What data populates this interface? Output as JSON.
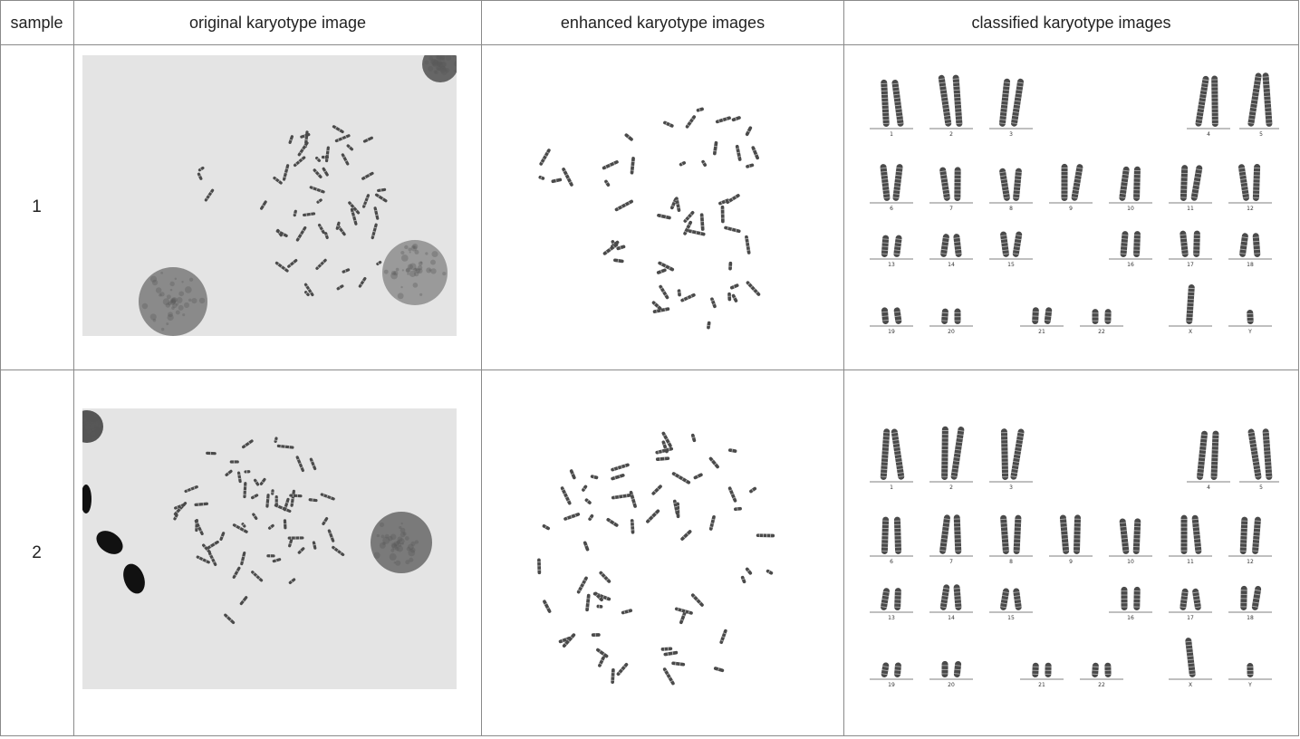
{
  "table": {
    "headers": {
      "sample": "sample",
      "original": "original karyotype image",
      "enhanced": "enhanced karyotype images",
      "classified": "classified karyotype images"
    },
    "rows": [
      {
        "sample": "1"
      },
      {
        "sample": "2"
      }
    ]
  },
  "karyogram": {
    "labels": [
      "1",
      "2",
      "3",
      "4",
      "5",
      "6",
      "7",
      "8",
      "9",
      "10",
      "11",
      "12",
      "13",
      "14",
      "15",
      "16",
      "17",
      "18",
      "19",
      "20",
      "21",
      "22",
      "X",
      "Y"
    ]
  },
  "colors": {
    "background": "#e4e4e4",
    "chromosome": "#4a4a4a",
    "nucleus": "#7d7d7d",
    "border": "#8a8a8a"
  }
}
